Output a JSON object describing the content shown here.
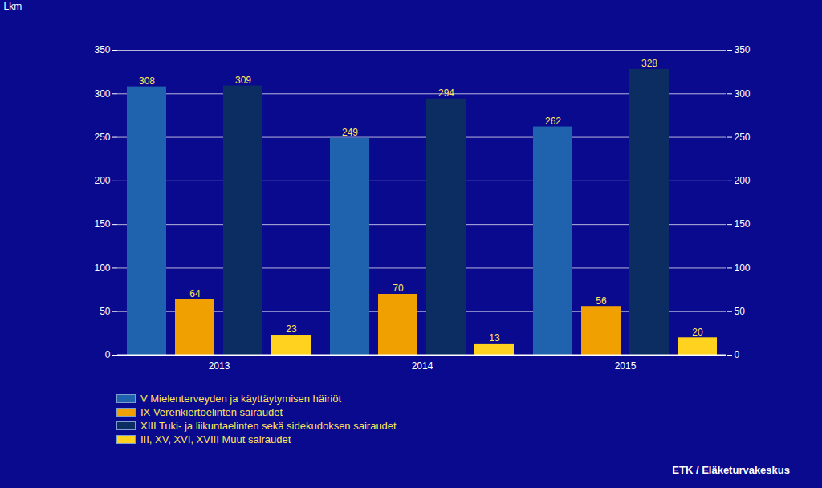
{
  "chart_data": {
    "type": "bar",
    "y_label": "Lkm",
    "caption": "ETK / Eläketurvakeskus",
    "categories": [
      "2013",
      "2014",
      "2015"
    ],
    "series": [
      {
        "name": "V Mielenterveyden ja käyttäytymisen häiriöt",
        "color": "#1f62ad",
        "values": [
          308,
          249,
          262
        ]
      },
      {
        "name": "IX Verenkiertoelinten sairaudet",
        "color": "#f0a000",
        "values": [
          64,
          70,
          56
        ]
      },
      {
        "name": "XIII Tuki- ja liikuntaelinten sekä sidekudoksen sairaudet",
        "color": "#0b2d62",
        "values": [
          309,
          294,
          328
        ]
      },
      {
        "name": "III, XV, XVI, XVIII Muut sairaudet",
        "color": "#ffd21f",
        "values": [
          23,
          13,
          20
        ]
      }
    ],
    "ylim": [
      0,
      350
    ],
    "yticks": [
      0,
      50,
      100,
      150,
      200,
      250,
      300,
      350
    ],
    "grid": true,
    "data_labels": true,
    "legend": "bottom"
  }
}
